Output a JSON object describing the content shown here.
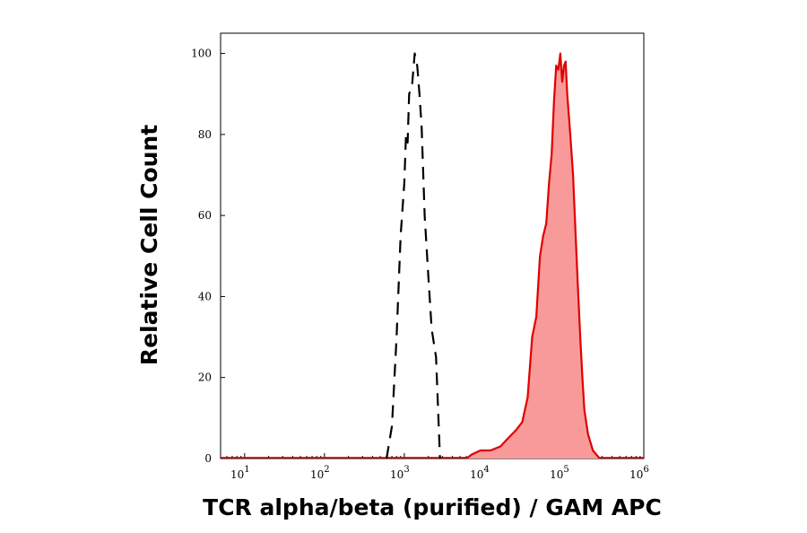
{
  "chart_data": {
    "type": "area",
    "scale": {
      "x": "log",
      "y": "linear"
    },
    "xlabel": "TCR alpha/beta (purified) / GAM APC",
    "ylabel": "Relative Cell Count",
    "xlim": [
      5,
      1000000
    ],
    "ylim": [
      0,
      105
    ],
    "grid": false,
    "y_ticks": [
      0,
      20,
      40,
      60,
      80,
      100
    ],
    "x_ticks": [
      {
        "value": 10,
        "base": "10",
        "exp": "1"
      },
      {
        "value": 100,
        "base": "10",
        "exp": "2"
      },
      {
        "value": 1000,
        "base": "10",
        "exp": "3"
      },
      {
        "value": 10000,
        "base": "10",
        "exp": "4"
      },
      {
        "value": 100000,
        "base": "10",
        "exp": "5"
      },
      {
        "value": 1000000,
        "base": "10",
        "exp": "6"
      }
    ],
    "series": [
      {
        "style": "dashed-outline",
        "color": "#000000",
        "points": [
          [
            600,
            0
          ],
          [
            700,
            8
          ],
          [
            800,
            30
          ],
          [
            900,
            55
          ],
          [
            1000,
            68
          ],
          [
            1050,
            80
          ],
          [
            1100,
            78
          ],
          [
            1150,
            90
          ],
          [
            1250,
            92
          ],
          [
            1350,
            100
          ],
          [
            1450,
            97
          ],
          [
            1550,
            90
          ],
          [
            1650,
            82
          ],
          [
            1800,
            60
          ],
          [
            2000,
            45
          ],
          [
            2200,
            32
          ],
          [
            2500,
            25
          ],
          [
            2800,
            0
          ]
        ]
      },
      {
        "style": "filled",
        "color": "#e00000",
        "fill": "#f89a9a",
        "points": [
          [
            6000,
            0
          ],
          [
            7000,
            1
          ],
          [
            9000,
            2
          ],
          [
            12000,
            2
          ],
          [
            16000,
            3
          ],
          [
            20000,
            5
          ],
          [
            25000,
            7
          ],
          [
            30000,
            9
          ],
          [
            35000,
            15
          ],
          [
            40000,
            30
          ],
          [
            45000,
            35
          ],
          [
            50000,
            50
          ],
          [
            55000,
            55
          ],
          [
            60000,
            58
          ],
          [
            65000,
            68
          ],
          [
            70000,
            75
          ],
          [
            75000,
            88
          ],
          [
            80000,
            97
          ],
          [
            85000,
            96
          ],
          [
            90000,
            100
          ],
          [
            95000,
            93
          ],
          [
            100000,
            97
          ],
          [
            105000,
            98
          ],
          [
            110000,
            90
          ],
          [
            120000,
            80
          ],
          [
            130000,
            70
          ],
          [
            140000,
            55
          ],
          [
            150000,
            42
          ],
          [
            160000,
            30
          ],
          [
            170000,
            20
          ],
          [
            180000,
            12
          ],
          [
            200000,
            6
          ],
          [
            230000,
            2
          ],
          [
            280000,
            0
          ]
        ]
      }
    ]
  }
}
